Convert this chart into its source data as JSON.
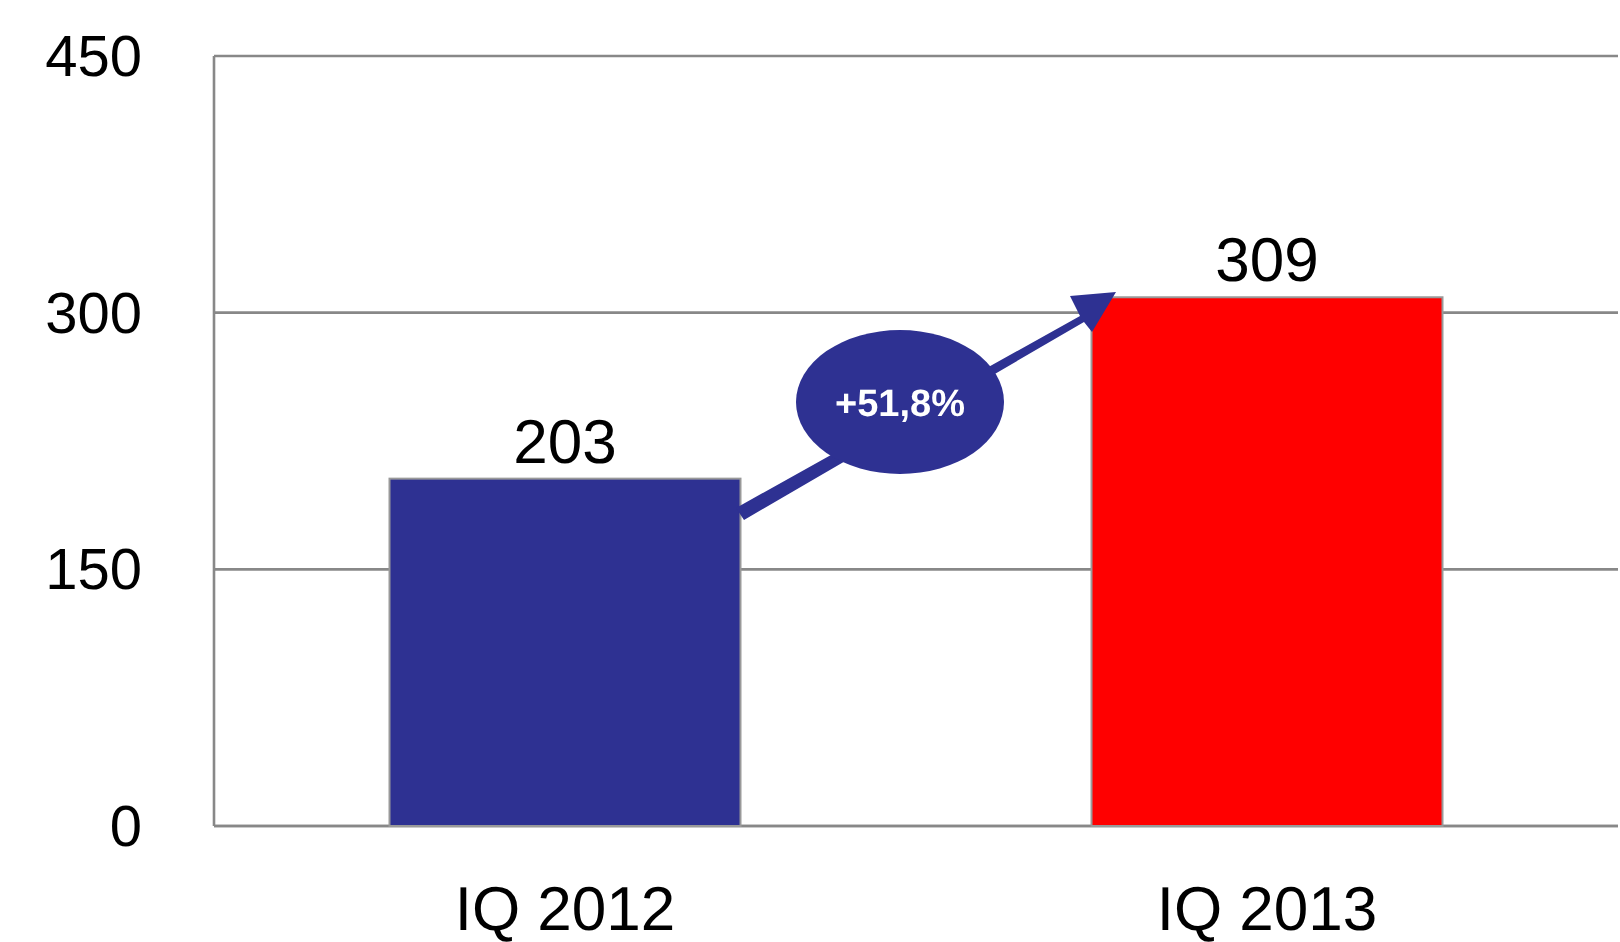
{
  "chart_data": {
    "type": "bar",
    "categories": [
      "IQ 2012",
      "IQ 2013"
    ],
    "values": [
      203,
      309
    ],
    "colors": [
      "#2e3192",
      "#ff0000"
    ],
    "ylim": [
      0,
      450
    ],
    "yticks": [
      0,
      150,
      300,
      450
    ],
    "grid": "y",
    "data_labels": true,
    "annotations": [
      "+51,8%"
    ]
  }
}
